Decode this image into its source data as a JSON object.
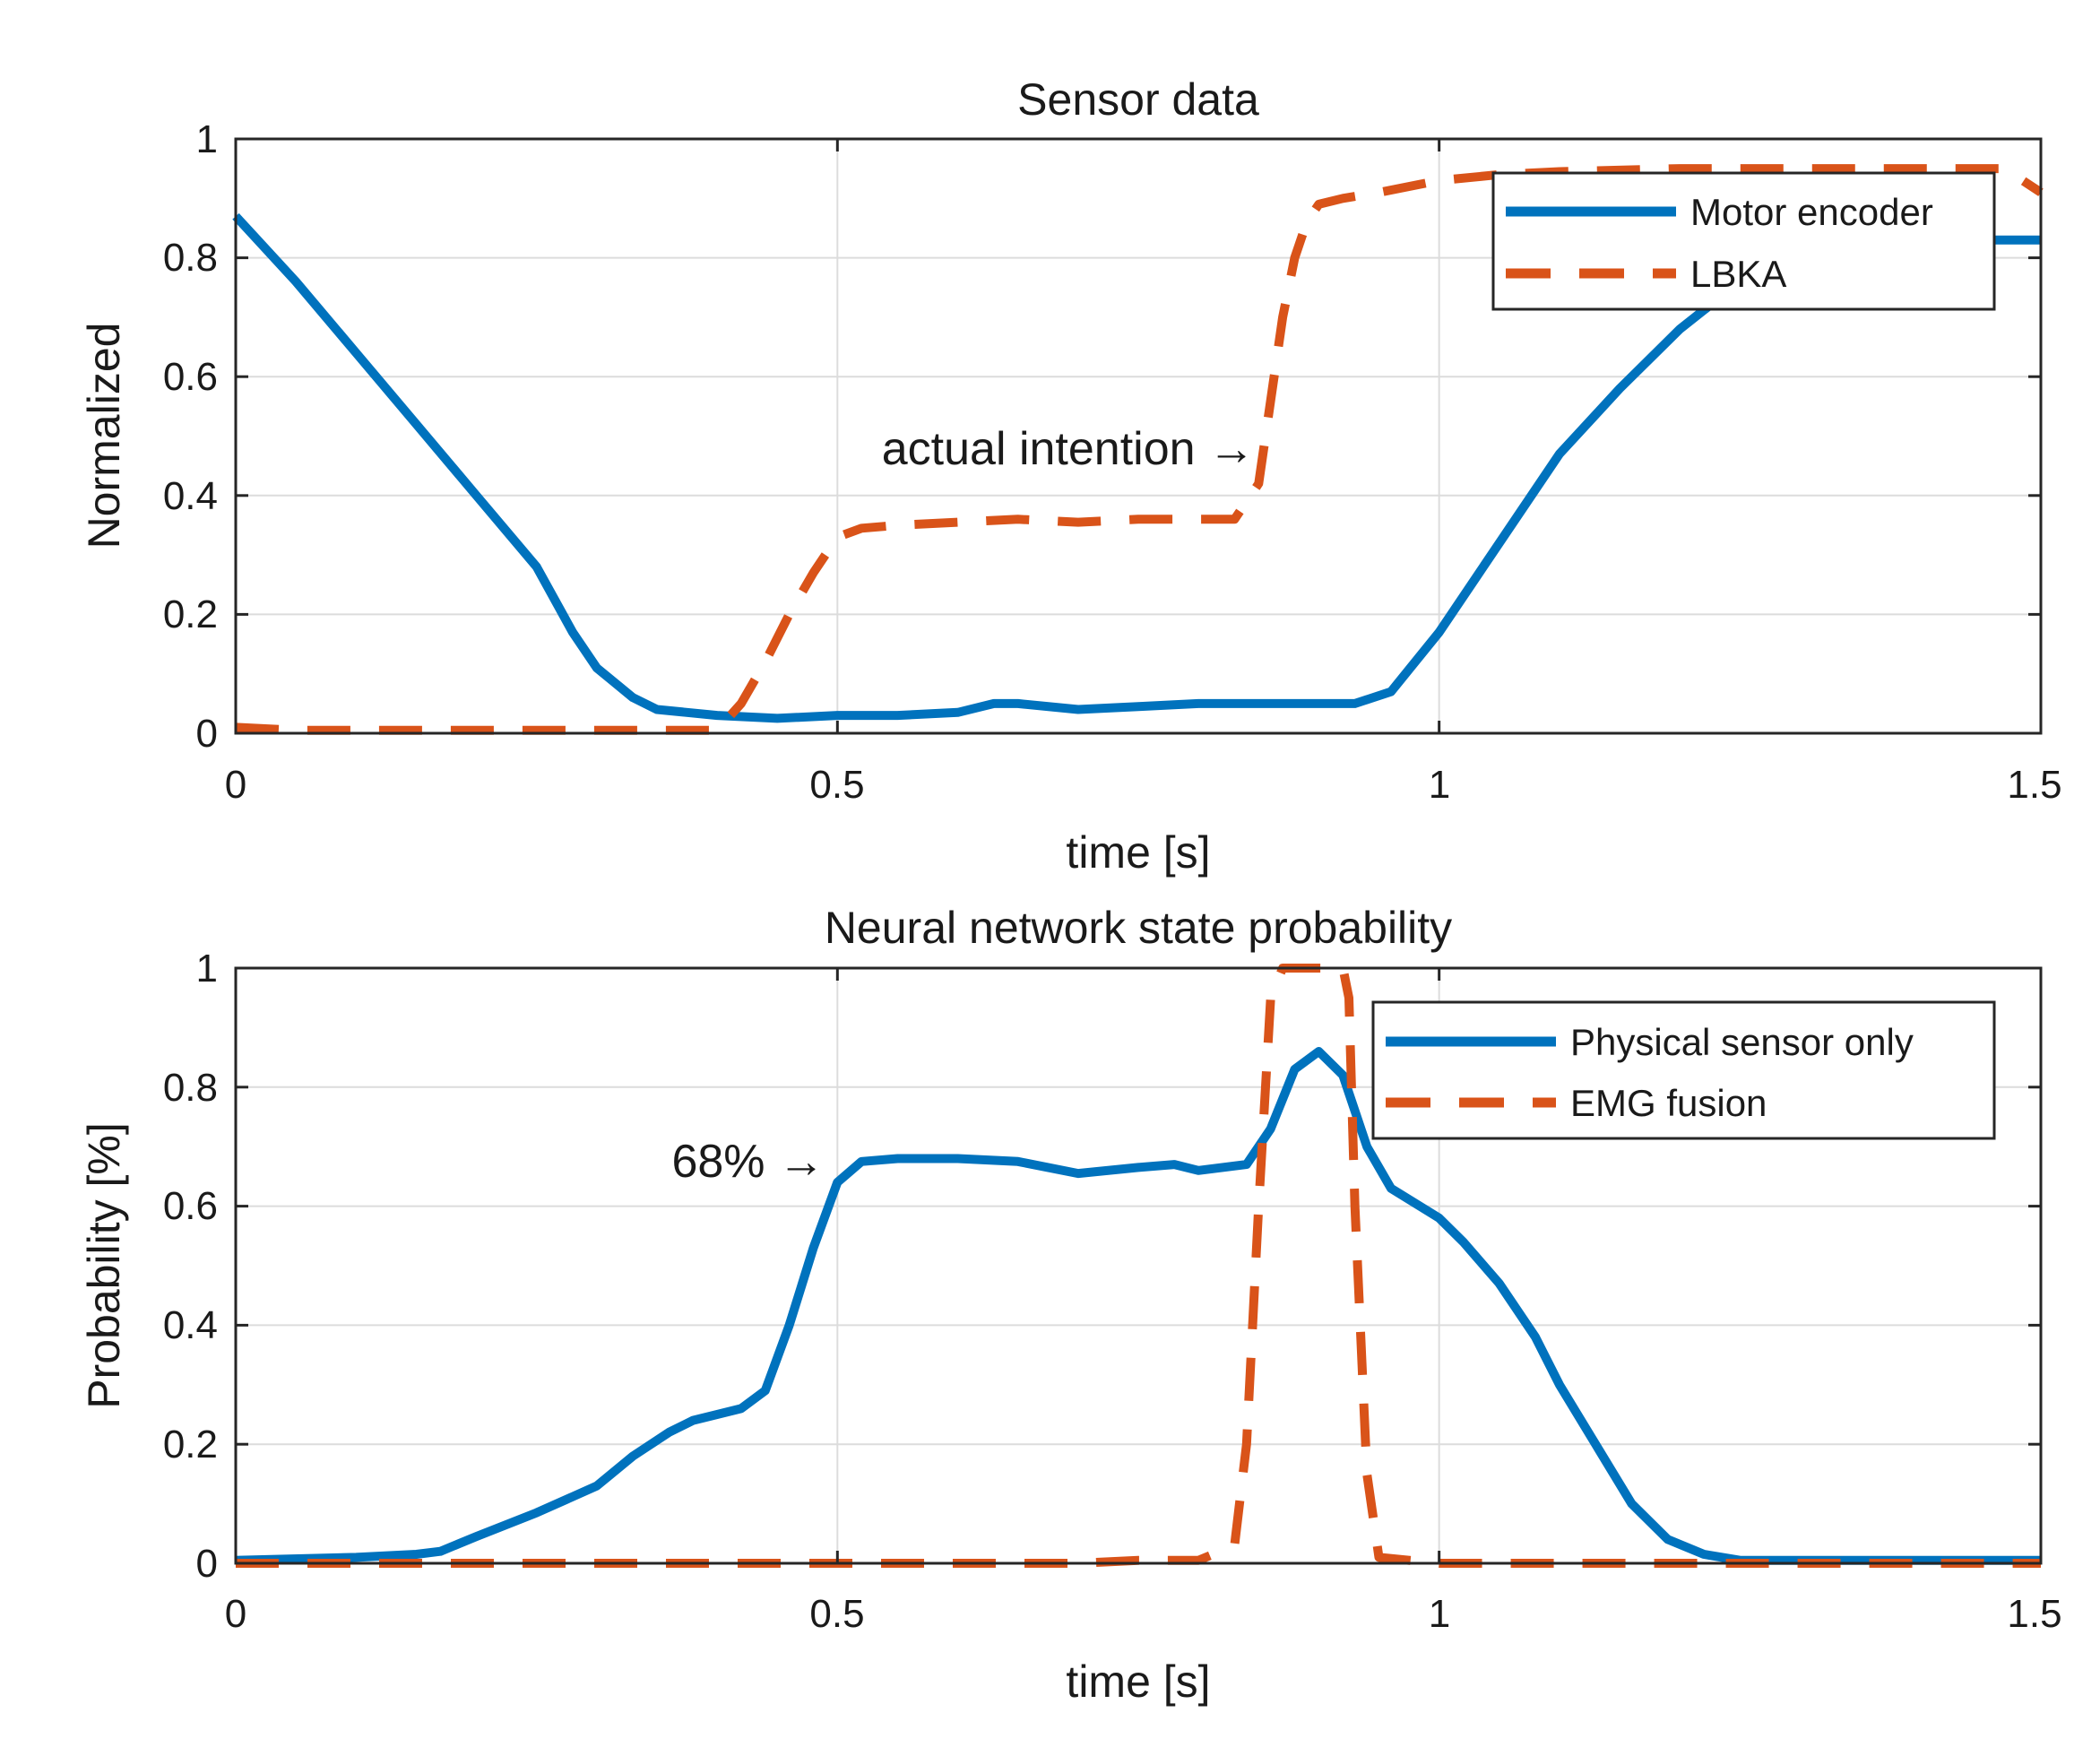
{
  "chart_data": [
    {
      "type": "line",
      "title": "Sensor data",
      "xlabel": "time [s]",
      "ylabel": "Normalized",
      "xlim": [
        0,
        1.5
      ],
      "ylim": [
        0,
        1
      ],
      "xticks": [
        0,
        0.5,
        1,
        1.5
      ],
      "xtick_labels": [
        "0",
        "0.5",
        "1",
        "1.5"
      ],
      "yticks": [
        0,
        0.2,
        0.4,
        0.6,
        0.8,
        1
      ],
      "ytick_labels": [
        "0",
        "0.2",
        "0.4",
        "0.6",
        "0.8",
        "1"
      ],
      "grid": true,
      "legend_position": "top-right",
      "annotation": {
        "text": "actual intention →",
        "x": 0.855,
        "y": 0.45
      },
      "series": [
        {
          "name": "Motor encoder",
          "style": "solid",
          "color": "#0072BD",
          "x": [
            0,
            0.05,
            0.1,
            0.15,
            0.2,
            0.25,
            0.28,
            0.3,
            0.33,
            0.35,
            0.4,
            0.45,
            0.5,
            0.55,
            0.6,
            0.63,
            0.65,
            0.7,
            0.75,
            0.8,
            0.85,
            0.9,
            0.93,
            0.96,
            1.0,
            1.05,
            1.1,
            1.15,
            1.2,
            1.25,
            1.3,
            1.35,
            1.4,
            1.45,
            1.5
          ],
          "values": [
            0.87,
            0.76,
            0.64,
            0.52,
            0.4,
            0.28,
            0.17,
            0.11,
            0.06,
            0.04,
            0.03,
            0.025,
            0.03,
            0.03,
            0.035,
            0.05,
            0.05,
            0.04,
            0.045,
            0.05,
            0.05,
            0.05,
            0.05,
            0.07,
            0.17,
            0.32,
            0.47,
            0.58,
            0.68,
            0.76,
            0.8,
            0.82,
            0.825,
            0.83,
            0.83
          ]
        },
        {
          "name": "LBKA",
          "style": "dashed",
          "color": "#D95319",
          "x": [
            0,
            0.05,
            0.1,
            0.15,
            0.2,
            0.25,
            0.3,
            0.35,
            0.38,
            0.4,
            0.42,
            0.44,
            0.46,
            0.48,
            0.5,
            0.52,
            0.55,
            0.6,
            0.65,
            0.7,
            0.75,
            0.8,
            0.83,
            0.85,
            0.86,
            0.87,
            0.88,
            0.89,
            0.9,
            0.92,
            0.95,
            1.0,
            1.05,
            1.1,
            1.2,
            1.3,
            1.4,
            1.47,
            1.5
          ],
          "values": [
            0.01,
            0.005,
            0.005,
            0.005,
            0.005,
            0.005,
            0.005,
            0.005,
            0.005,
            0.005,
            0.05,
            0.12,
            0.2,
            0.27,
            0.33,
            0.345,
            0.35,
            0.355,
            0.36,
            0.355,
            0.36,
            0.36,
            0.36,
            0.42,
            0.56,
            0.7,
            0.8,
            0.86,
            0.89,
            0.9,
            0.91,
            0.93,
            0.94,
            0.945,
            0.95,
            0.95,
            0.95,
            0.95,
            0.91
          ]
        }
      ]
    },
    {
      "type": "line",
      "title": "Neural network state probability",
      "xlabel": "time [s]",
      "ylabel": "Probability [%]",
      "xlim": [
        0,
        1.5
      ],
      "ylim": [
        0,
        1
      ],
      "xticks": [
        0,
        0.5,
        1,
        1.5
      ],
      "xtick_labels": [
        "0",
        "0.5",
        "1",
        "1.5"
      ],
      "yticks": [
        0,
        0.2,
        0.4,
        0.6,
        0.8,
        1
      ],
      "ytick_labels": [
        "0",
        "0.2",
        "0.4",
        "0.6",
        "0.8",
        "1"
      ],
      "grid": true,
      "legend_position": "top-right",
      "annotation": {
        "text": "68% →",
        "x": 0.49,
        "y": 0.67
      },
      "series": [
        {
          "name": "Physical sensor only",
          "style": "solid",
          "color": "#0072BD",
          "x": [
            0,
            0.1,
            0.15,
            0.17,
            0.2,
            0.25,
            0.3,
            0.33,
            0.36,
            0.38,
            0.4,
            0.42,
            0.44,
            0.46,
            0.48,
            0.5,
            0.52,
            0.55,
            0.6,
            0.65,
            0.7,
            0.75,
            0.78,
            0.8,
            0.84,
            0.86,
            0.88,
            0.9,
            0.92,
            0.94,
            0.96,
            1.0,
            1.02,
            1.05,
            1.08,
            1.1,
            1.13,
            1.16,
            1.19,
            1.22,
            1.25,
            1.3,
            1.4,
            1.5
          ],
          "values": [
            0.005,
            0.01,
            0.015,
            0.02,
            0.045,
            0.085,
            0.13,
            0.18,
            0.22,
            0.24,
            0.25,
            0.26,
            0.29,
            0.4,
            0.53,
            0.64,
            0.675,
            0.68,
            0.68,
            0.675,
            0.655,
            0.665,
            0.67,
            0.66,
            0.67,
            0.73,
            0.83,
            0.86,
            0.82,
            0.7,
            0.63,
            0.58,
            0.54,
            0.47,
            0.38,
            0.3,
            0.2,
            0.1,
            0.04,
            0.015,
            0.005,
            0.005,
            0.005,
            0.005
          ]
        },
        {
          "name": "EMG fusion",
          "style": "dashed",
          "color": "#D95319",
          "x": [
            0,
            0.1,
            0.2,
            0.3,
            0.4,
            0.5,
            0.6,
            0.7,
            0.75,
            0.8,
            0.83,
            0.84,
            0.85,
            0.86,
            0.87,
            0.88,
            0.9,
            0.92,
            0.925,
            0.93,
            0.94,
            0.95,
            1.0,
            1.1,
            1.2,
            1.3,
            1.4,
            1.5
          ],
          "values": [
            0,
            0,
            0,
            0,
            0,
            0,
            0,
            0,
            0.005,
            0.005,
            0.03,
            0.2,
            0.6,
            0.95,
            1.0,
            1.0,
            1.0,
            1.0,
            0.95,
            0.6,
            0.15,
            0.01,
            0,
            0,
            0,
            0,
            0,
            0
          ]
        }
      ]
    }
  ]
}
